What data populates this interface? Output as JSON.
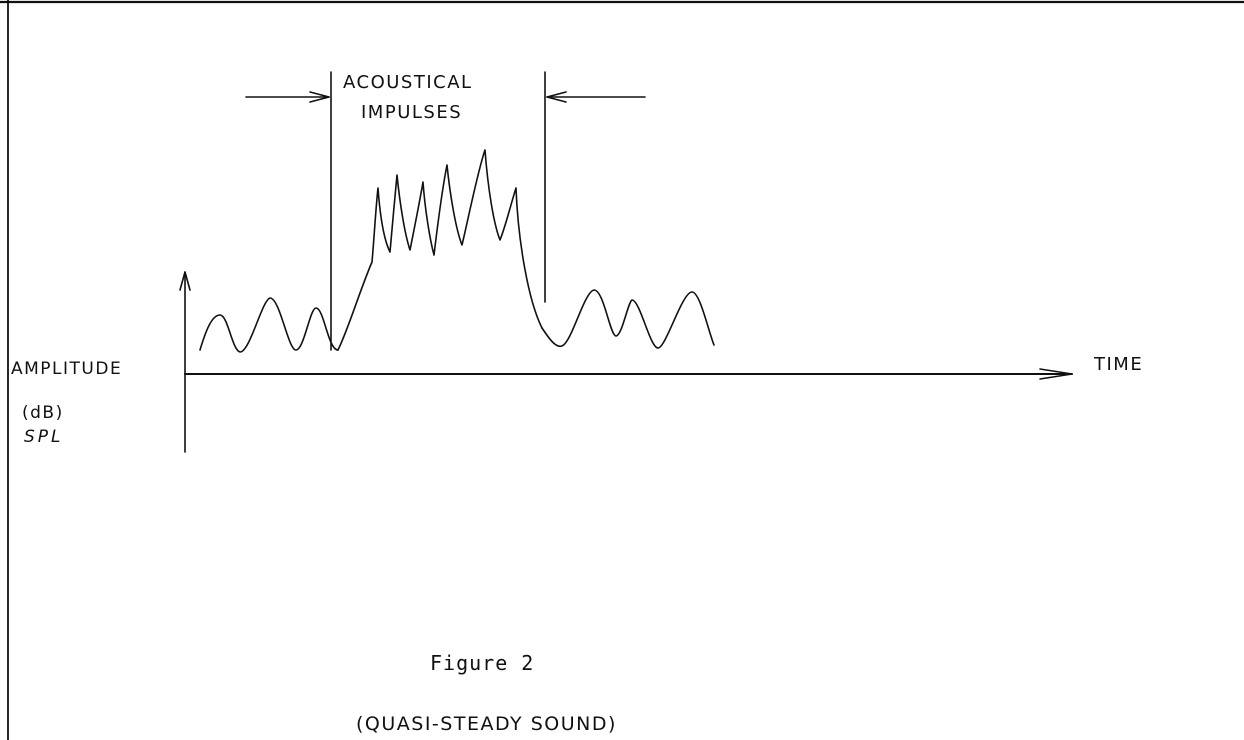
{
  "figure": {
    "caption": "Figure 2",
    "subcaption": "(QUASI-STEADY SOUND)"
  },
  "axes": {
    "x_label": "TIME",
    "y_label": "AMPLITUDE",
    "y_unit": "(dB)",
    "y_unit_type": "SPL"
  },
  "annotation": {
    "line1": "ACOUSTICAL",
    "line2": "IMPULSES"
  },
  "colors": {
    "ink": "#111111",
    "paper": "#ffffff"
  }
}
